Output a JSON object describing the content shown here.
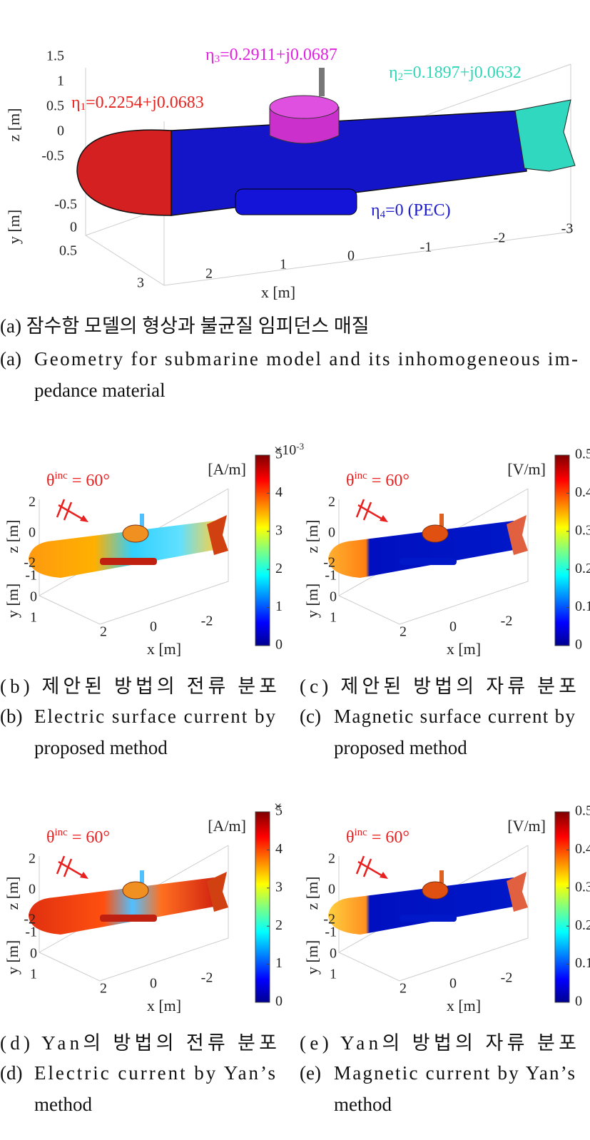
{
  "panel_a": {
    "annotations": [
      {
        "symbol": "η",
        "sub": "1",
        "value": "=0.2254+j0.0683",
        "color": "#e8231f"
      },
      {
        "symbol": "η",
        "sub": "3",
        "value": "=0.2911+j0.0687",
        "color": "#e020e0"
      },
      {
        "symbol": "η",
        "sub": "2",
        "value": "=0.1897+j0.0632",
        "color": "#2fd6b6"
      },
      {
        "symbol": "η",
        "sub": "4",
        "value": "=0 (PEC)",
        "color": "#1c1ccc"
      }
    ],
    "z_ticks": [
      "1.5",
      "1",
      "0.5",
      "0",
      "-0.5"
    ],
    "y_ticks": [
      "-0.5",
      "0",
      "0.5"
    ],
    "x_ticks": [
      "3",
      "2",
      "1",
      "0",
      "-1",
      "-2",
      "-3"
    ],
    "z_label": "z [m]",
    "y_label": "y [m]",
    "x_label": "x [m]",
    "caption_ko": "(a) 잠수함 모델의 형상과 불균질 임피던스 매질",
    "caption_label": "(a)",
    "caption_en": [
      "Geometry for submarine model and its inhomogeneous im-",
      "pedance material"
    ]
  },
  "panels": [
    {
      "incidence": {
        "symbol": "θ",
        "sup": "inc",
        "value": " = 60°"
      },
      "unit": "[A/m]",
      "colorbar_ticks": [
        "5",
        "4",
        "3",
        "2",
        "1",
        "0"
      ],
      "colorbar_exponent": {
        "base": "×10",
        "sup": "-3"
      },
      "z_ticks": [
        "2",
        "0",
        "-2"
      ],
      "y_ticks": [
        "-1",
        "0",
        "1"
      ],
      "x_ticks": [
        "2",
        "0",
        "-2"
      ],
      "z_label": "z [m]",
      "y_label": "y [m]",
      "x_label": "x [m]",
      "caption_ko": "(b) 제안된 방법의 전류 분포",
      "caption_label": "(b)",
      "caption_en": [
        "Electric surface current by",
        "proposed method"
      ]
    },
    {
      "incidence": {
        "symbol": "θ",
        "sup": "inc",
        "value": " = 60°"
      },
      "unit": "[V/m]",
      "colorbar_ticks": [
        "0.5",
        "0.4",
        "0.3",
        "0.2",
        "0.1",
        "0"
      ],
      "z_ticks": [
        "2",
        "0",
        "-2"
      ],
      "y_ticks": [
        "-1",
        "0",
        "1"
      ],
      "x_ticks": [
        "2",
        "0",
        "-2"
      ],
      "z_label": "z [m]",
      "y_label": "y [m]",
      "x_label": "x [m]",
      "caption_ko": "(c) 제안된 방법의 자류 분포",
      "caption_label": "(c)",
      "caption_en": [
        "Magnetic surface current by",
        "proposed method"
      ]
    },
    {
      "incidence": {
        "symbol": "θ",
        "sup": "inc",
        "value": " = 60°"
      },
      "unit": "[A/m]",
      "colorbar_ticks": [
        "5",
        "4",
        "3",
        "2",
        "1",
        "0"
      ],
      "colorbar_exponent": {
        "base": "×"
      },
      "z_ticks": [
        "2",
        "0",
        "-2"
      ],
      "y_ticks": [
        "-1",
        "0",
        "1"
      ],
      "x_ticks": [
        "2",
        "0",
        "-2"
      ],
      "z_label": "z [m]",
      "y_label": "y [m]",
      "x_label": "x [m]",
      "caption_ko": "(d) Yan의 방법의 전류 분포",
      "caption_label": "(d)",
      "caption_en": [
        "Electric current by Yan’s",
        "method"
      ]
    },
    {
      "incidence": {
        "symbol": "θ",
        "sup": "inc",
        "value": " = 60°"
      },
      "unit": "[V/m]",
      "colorbar_ticks": [
        "0.5",
        "0.4",
        "0.3",
        "0.2",
        "0.1",
        "0"
      ],
      "z_ticks": [
        "2",
        "0",
        "-2"
      ],
      "y_ticks": [
        "-1",
        "0",
        "1"
      ],
      "x_ticks": [
        "2",
        "0",
        "-2"
      ],
      "z_label": "z [m]",
      "y_label": "y [m]",
      "x_label": "x [m]",
      "caption_ko": "(e) Yan의 방법의 자류 분포",
      "caption_label": "(e)",
      "caption_en": [
        "Magnetic current by Yan’s",
        "method"
      ]
    }
  ]
}
